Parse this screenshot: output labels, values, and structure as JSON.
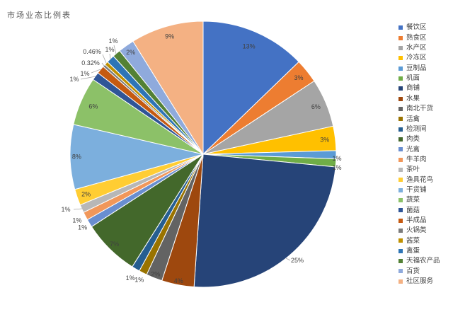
{
  "chart_data": {
    "type": "pie",
    "title": "市场业态比例表",
    "legend_position": "right",
    "direction": "clockwise",
    "start_angle_deg": 0,
    "categories": [
      "餐饮区",
      "熟食区",
      "水产区",
      "冷冻区",
      "豆制品",
      "机面",
      "商铺",
      "水果",
      "南北干货",
      "活禽",
      "检测间",
      "肉类",
      "光禽",
      "牛羊肉",
      "茶叶",
      "渔具花鸟",
      "干货铺",
      "蔬菜",
      "菌菇",
      "半成品",
      "火锅类",
      "酱菜",
      "禽蛋",
      "天福农产品",
      "百货",
      "社区服务"
    ],
    "values": [
      13,
      3,
      6,
      3,
      1,
      1,
      25,
      4,
      2,
      1,
      1,
      7,
      1,
      1,
      1,
      2,
      8,
      6,
      1,
      1,
      0.32,
      0.46,
      1,
      1,
      2,
      9
    ],
    "labels": [
      "13%",
      "3%",
      "6%",
      "3%",
      "1%",
      "1%",
      "25%",
      "4%",
      "2%",
      "1%",
      "1%",
      "7%",
      "1%",
      "1%",
      "1%",
      "2%",
      "8%",
      "6%",
      "1%",
      "1%",
      "0.32%",
      "0.46%",
      "1%",
      "1%",
      "2%",
      "9%"
    ],
    "colors": [
      "#4472C4",
      "#ED7D31",
      "#A5A5A5",
      "#FFC000",
      "#5B9BD5",
      "#70AD47",
      "#264478",
      "#9E480E",
      "#636363",
      "#997300",
      "#255E91",
      "#43682B",
      "#698ED0",
      "#F1975A",
      "#B7B7B7",
      "#FFCD33",
      "#7CAFDD",
      "#8CC168",
      "#2F5597",
      "#C55A11",
      "#7B7B7B",
      "#BF9000",
      "#2E75B6",
      "#538135",
      "#8FAADC",
      "#F4B183"
    ],
    "label_color": "#404040",
    "title_color": "#595959",
    "background_color": "#FFFFFF"
  }
}
